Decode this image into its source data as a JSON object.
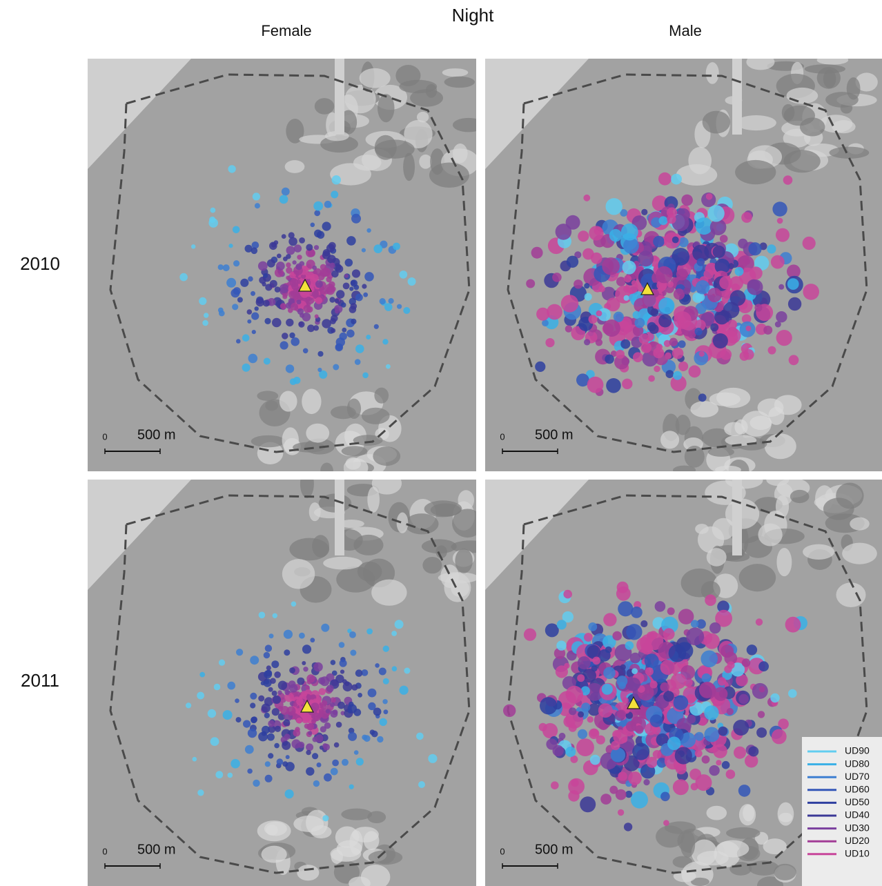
{
  "title": "Night",
  "columns": [
    "Female",
    "Male"
  ],
  "rows": [
    "2010",
    "2011"
  ],
  "panels": [
    {
      "scale_zero": "0",
      "scale_label": "500 m"
    },
    {
      "scale_zero": "0",
      "scale_label": "500 m"
    },
    {
      "scale_zero": "0",
      "scale_label": "500 m"
    },
    {
      "scale_zero": "0",
      "scale_label": "500 m"
    }
  ],
  "legend": [
    {
      "label": "UD90",
      "color": "#62cdf0"
    },
    {
      "label": "UD80",
      "color": "#3ab0e6"
    },
    {
      "label": "UD70",
      "color": "#3d7fd1"
    },
    {
      "label": "UD60",
      "color": "#3457b8"
    },
    {
      "label": "UD50",
      "color": "#2e3fa0"
    },
    {
      "label": "UD40",
      "color": "#3b3896"
    },
    {
      "label": "UD30",
      "color": "#7a3f9e"
    },
    {
      "label": "UD20",
      "color": "#a23c96"
    },
    {
      "label": "UD10",
      "color": "#c8459a"
    }
  ]
}
